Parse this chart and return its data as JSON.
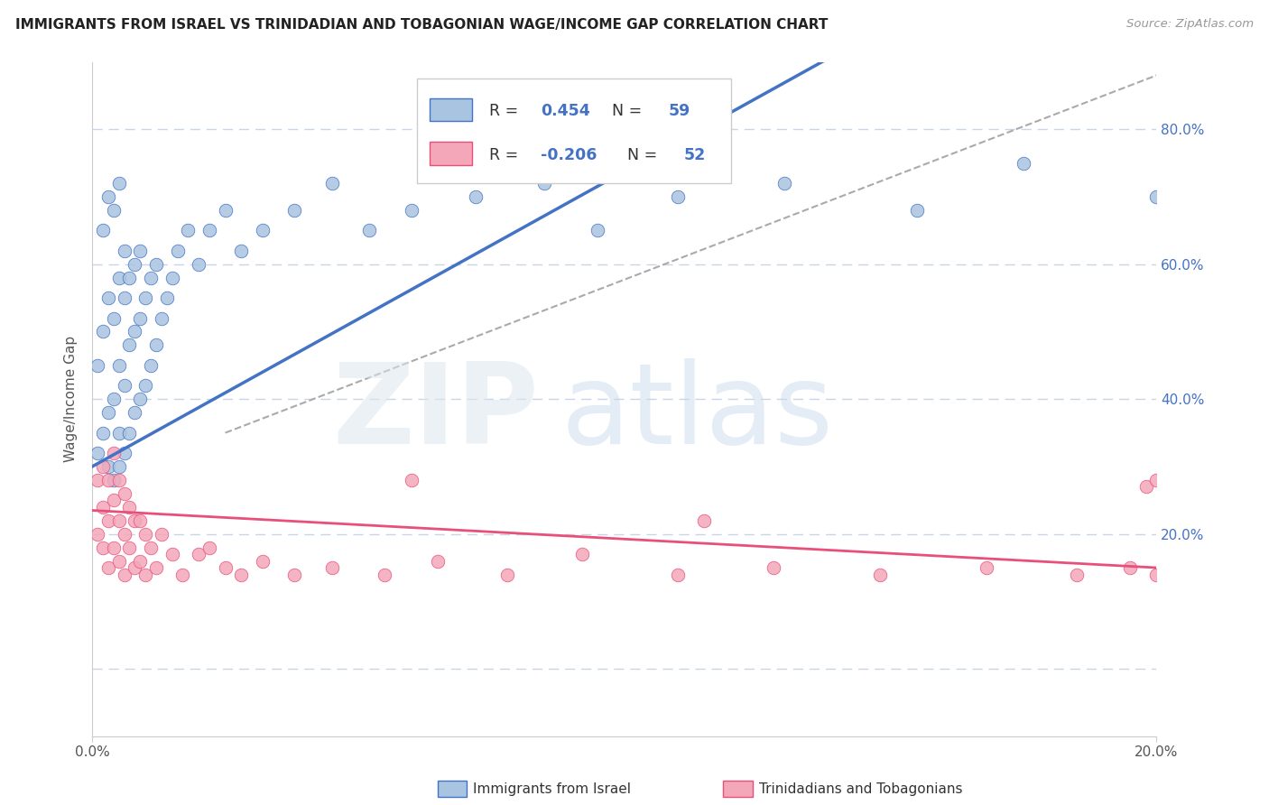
{
  "title": "IMMIGRANTS FROM ISRAEL VS TRINIDADIAN AND TOBAGONIAN WAGE/INCOME GAP CORRELATION CHART",
  "source": "Source: ZipAtlas.com",
  "ylabel": "Wage/Income Gap",
  "legend_label1": "Immigrants from Israel",
  "legend_label2": "Trinidadians and Tobagonians",
  "R1": 0.454,
  "N1": 59,
  "R2": -0.206,
  "N2": 52,
  "color_blue": "#a8c4e0",
  "color_pink": "#f4a7b9",
  "line_blue": "#4472c4",
  "line_pink": "#e8507a",
  "line_dashed_color": "#aaaaaa",
  "background_color": "#ffffff",
  "grid_color": "#c8d4e8",
  "xlim": [
    0.0,
    0.2
  ],
  "ylim": [
    -0.1,
    0.9
  ],
  "yticks": [
    0.0,
    0.2,
    0.4,
    0.6,
    0.8
  ],
  "blue_x": [
    0.001,
    0.001,
    0.002,
    0.002,
    0.002,
    0.003,
    0.003,
    0.003,
    0.003,
    0.004,
    0.004,
    0.004,
    0.004,
    0.005,
    0.005,
    0.005,
    0.005,
    0.005,
    0.006,
    0.006,
    0.006,
    0.006,
    0.007,
    0.007,
    0.007,
    0.008,
    0.008,
    0.008,
    0.009,
    0.009,
    0.009,
    0.01,
    0.01,
    0.011,
    0.011,
    0.012,
    0.012,
    0.013,
    0.014,
    0.015,
    0.016,
    0.018,
    0.02,
    0.022,
    0.025,
    0.028,
    0.032,
    0.038,
    0.045,
    0.052,
    0.06,
    0.072,
    0.085,
    0.095,
    0.11,
    0.13,
    0.155,
    0.175,
    0.2
  ],
  "blue_y": [
    0.32,
    0.45,
    0.35,
    0.5,
    0.65,
    0.3,
    0.38,
    0.55,
    0.7,
    0.28,
    0.4,
    0.52,
    0.68,
    0.3,
    0.35,
    0.45,
    0.58,
    0.72,
    0.32,
    0.42,
    0.55,
    0.62,
    0.35,
    0.48,
    0.58,
    0.38,
    0.5,
    0.6,
    0.4,
    0.52,
    0.62,
    0.42,
    0.55,
    0.45,
    0.58,
    0.48,
    0.6,
    0.52,
    0.55,
    0.58,
    0.62,
    0.65,
    0.6,
    0.65,
    0.68,
    0.62,
    0.65,
    0.68,
    0.72,
    0.65,
    0.68,
    0.7,
    0.72,
    0.65,
    0.7,
    0.72,
    0.68,
    0.75,
    0.7
  ],
  "pink_x": [
    0.001,
    0.001,
    0.002,
    0.002,
    0.002,
    0.003,
    0.003,
    0.003,
    0.004,
    0.004,
    0.004,
    0.005,
    0.005,
    0.005,
    0.006,
    0.006,
    0.006,
    0.007,
    0.007,
    0.008,
    0.008,
    0.009,
    0.009,
    0.01,
    0.01,
    0.011,
    0.012,
    0.013,
    0.015,
    0.017,
    0.02,
    0.022,
    0.025,
    0.028,
    0.032,
    0.038,
    0.045,
    0.055,
    0.065,
    0.078,
    0.092,
    0.11,
    0.128,
    0.148,
    0.168,
    0.185,
    0.195,
    0.198,
    0.2,
    0.115,
    0.06,
    0.2
  ],
  "pink_y": [
    0.2,
    0.28,
    0.18,
    0.24,
    0.3,
    0.15,
    0.22,
    0.28,
    0.18,
    0.25,
    0.32,
    0.16,
    0.22,
    0.28,
    0.14,
    0.2,
    0.26,
    0.18,
    0.24,
    0.15,
    0.22,
    0.16,
    0.22,
    0.14,
    0.2,
    0.18,
    0.15,
    0.2,
    0.17,
    0.14,
    0.17,
    0.18,
    0.15,
    0.14,
    0.16,
    0.14,
    0.15,
    0.14,
    0.16,
    0.14,
    0.17,
    0.14,
    0.15,
    0.14,
    0.15,
    0.14,
    0.15,
    0.27,
    0.28,
    0.22,
    0.28,
    0.14
  ]
}
